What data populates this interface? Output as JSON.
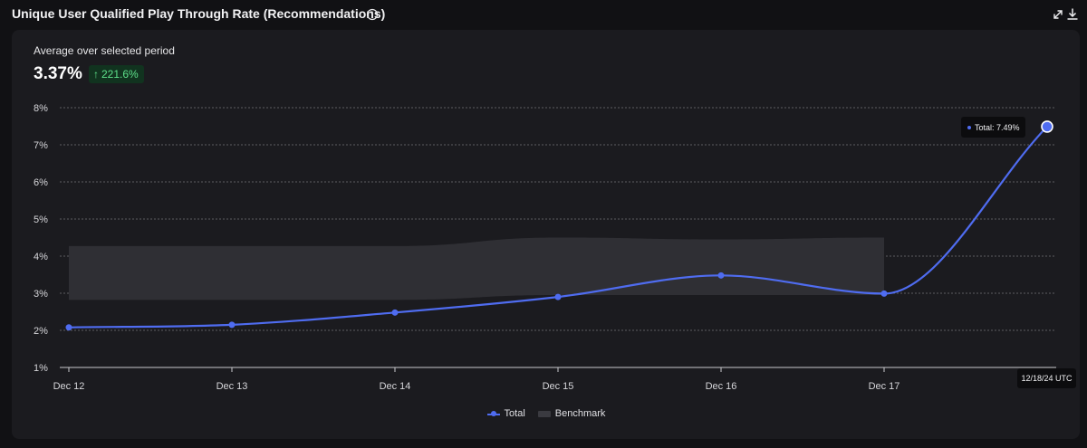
{
  "header": {
    "title": "Unique User Qualified Play Through Rate (Recommendations)",
    "info_icon": "info-circle-icon",
    "expand_icon": "expand-arrows-icon",
    "download_icon": "download-icon"
  },
  "summary": {
    "label": "Average over selected period",
    "value": "3.37%",
    "delta": "221.6%",
    "delta_direction": "up",
    "delta_color": "#5ee08a"
  },
  "tooltip": {
    "series_text": "Total: 7.49%",
    "date_text": "12/18/24 UTC"
  },
  "legend": {
    "total_label": "Total",
    "benchmark_label": "Benchmark"
  },
  "colors": {
    "total_line": "#4f6cf0",
    "benchmark_band": "#2f2f34",
    "grid": "#8a8a90",
    "background": "#1b1b1f"
  },
  "chart_data": {
    "type": "line",
    "x": [
      "Dec 12",
      "Dec 13",
      "Dec 14",
      "Dec 15",
      "Dec 16",
      "Dec 17",
      "Dec 18"
    ],
    "x_tick_labels": [
      "Dec 12",
      "Dec 13",
      "Dec 14",
      "Dec 15",
      "Dec 16",
      "Dec 17"
    ],
    "y_tick_labels": [
      "1%",
      "2%",
      "3%",
      "4%",
      "5%",
      "6%",
      "7%",
      "8%"
    ],
    "ylim": [
      1,
      8
    ],
    "y_unit": "%",
    "grid": "horizontal dashed",
    "legend_position": "bottom-center",
    "series": [
      {
        "name": "Total",
        "values": [
          2.08,
          2.15,
          2.48,
          2.9,
          3.48,
          2.99,
          7.49
        ]
      },
      {
        "name": "Benchmark",
        "kind": "band",
        "lower": [
          2.82,
          2.82,
          2.82,
          2.95,
          2.95,
          2.95
        ],
        "upper": [
          4.27,
          4.27,
          4.27,
          4.5,
          4.45,
          4.5
        ]
      }
    ],
    "highlighted_point": {
      "x": "Dec 18",
      "value": 7.49
    }
  }
}
